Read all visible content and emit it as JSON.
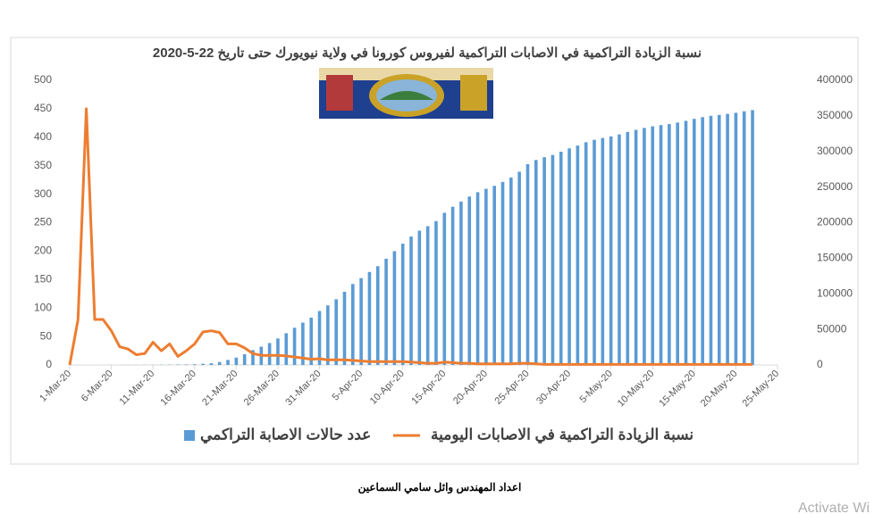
{
  "chart_data": {
    "type": "bar-line",
    "title": "نسبة  الزيادة  التراكمية في الاصابات التراكمية لفيروس كورونا  في ولاية نيويورك حتى تاريخ 22-5-2020",
    "x": [
      "2020-03-01",
      "2020-03-02",
      "2020-03-03",
      "2020-03-04",
      "2020-03-05",
      "2020-03-06",
      "2020-03-07",
      "2020-03-08",
      "2020-03-09",
      "2020-03-10",
      "2020-03-11",
      "2020-03-12",
      "2020-03-13",
      "2020-03-14",
      "2020-03-15",
      "2020-03-16",
      "2020-03-17",
      "2020-03-18",
      "2020-03-19",
      "2020-03-20",
      "2020-03-21",
      "2020-03-22",
      "2020-03-23",
      "2020-03-24",
      "2020-03-25",
      "2020-03-26",
      "2020-03-27",
      "2020-03-28",
      "2020-03-29",
      "2020-03-30",
      "2020-03-31",
      "2020-04-01",
      "2020-04-02",
      "2020-04-03",
      "2020-04-04",
      "2020-04-05",
      "2020-04-06",
      "2020-04-07",
      "2020-04-08",
      "2020-04-09",
      "2020-04-10",
      "2020-04-11",
      "2020-04-12",
      "2020-04-13",
      "2020-04-14",
      "2020-04-15",
      "2020-04-16",
      "2020-04-17",
      "2020-04-18",
      "2020-04-19",
      "2020-04-20",
      "2020-04-21",
      "2020-04-22",
      "2020-04-23",
      "2020-04-24",
      "2020-04-25",
      "2020-04-26",
      "2020-04-27",
      "2020-04-28",
      "2020-04-29",
      "2020-04-30",
      "2020-05-01",
      "2020-05-02",
      "2020-05-03",
      "2020-05-04",
      "2020-05-05",
      "2020-05-06",
      "2020-05-07",
      "2020-05-08",
      "2020-05-09",
      "2020-05-10",
      "2020-05-11",
      "2020-05-12",
      "2020-05-13",
      "2020-05-14",
      "2020-05-15",
      "2020-05-16",
      "2020-05-17",
      "2020-05-18",
      "2020-05-19",
      "2020-05-20",
      "2020-05-21",
      "2020-05-22"
    ],
    "series": [
      {
        "name": "عدد حالات الاصابة التراكمي",
        "color": "#5b9bd5",
        "axis": "y2",
        "kind": "bar",
        "values": [
          1,
          1,
          2,
          11,
          22,
          44,
          89,
          106,
          142,
          173,
          217,
          326,
          421,
          610,
          732,
          950,
          1700,
          2382,
          4152,
          7102,
          10356,
          15168,
          20875,
          25665,
          30811,
          37258,
          44635,
          52318,
          59513,
          66497,
          75795,
          83712,
          92381,
          102863,
          113704,
          122031,
          130689,
          138836,
          149316,
          159937,
          170512,
          180458,
          188694,
          195031,
          202208,
          213779,
          222284,
          229642,
          236732,
          242786,
          247512,
          251690,
          257216,
          263460,
          271590,
          282143,
          288045,
          291996,
          295106,
          299691,
          304372,
          308314,
          312977,
          316415,
          318953,
          321192,
          323978,
          327469,
          330407,
          333122,
          335395,
          337055,
          338485,
          340661,
          343051,
          345813,
          348232,
          350121,
          351371,
          352845,
          354370,
          356458,
          358154
        ]
      },
      {
        "name": "نسبة الزيادة  التراكمية في الاصابات اليومية",
        "color": "#ed7d31",
        "kind": "line",
        "values": [
          0,
          80,
          450,
          80,
          80,
          60,
          32,
          28,
          18,
          20,
          40,
          25,
          37,
          15,
          25,
          37,
          58,
          60,
          57,
          37,
          37,
          30,
          20,
          17,
          17,
          17,
          16,
          14,
          12,
          10,
          11,
          9,
          9,
          9,
          8,
          7,
          6,
          6,
          6,
          6,
          6,
          5,
          4,
          3,
          3,
          5,
          4,
          3,
          3,
          2,
          2,
          2,
          2,
          2,
          3,
          3,
          2,
          1,
          1,
          1,
          1,
          1,
          1,
          1,
          1,
          1,
          1,
          1,
          1,
          1,
          1,
          1,
          1,
          1,
          1,
          1,
          1,
          1,
          1,
          1,
          1,
          1,
          1
        ]
      }
    ],
    "xlim": [
      "2020-03-01",
      "2020-05-25"
    ],
    "xticks": [
      {
        "value": "2020-03-01",
        "label": "1-Mar-20"
      },
      {
        "value": "2020-03-06",
        "label": "6-Mar-20"
      },
      {
        "value": "2020-03-11",
        "label": "11-Mar-20"
      },
      {
        "value": "2020-03-16",
        "label": "16-Mar-20"
      },
      {
        "value": "2020-03-21",
        "label": "21-Mar-20"
      },
      {
        "value": "2020-03-26",
        "label": "26-Mar-20"
      },
      {
        "value": "2020-03-31",
        "label": "31-Mar-20"
      },
      {
        "value": "2020-04-05",
        "label": "5-Apr-20"
      },
      {
        "value": "2020-04-10",
        "label": "10-Apr-20"
      },
      {
        "value": "2020-04-15",
        "label": "15-Apr-20"
      },
      {
        "value": "2020-04-20",
        "label": "20-Apr-20"
      },
      {
        "value": "2020-04-25",
        "label": "25-Apr-20"
      },
      {
        "value": "2020-04-30",
        "label": "30-Apr-20"
      },
      {
        "value": "2020-05-05",
        "label": "5-May-20"
      },
      {
        "value": "2020-05-10",
        "label": "10-May-20"
      },
      {
        "value": "2020-05-15",
        "label": "15-May-20"
      },
      {
        "value": "2020-05-20",
        "label": "20-May-20"
      },
      {
        "value": "2020-05-25",
        "label": "25-May-20"
      }
    ],
    "ylim": [
      0,
      500
    ],
    "yticks": [
      0,
      50,
      100,
      150,
      200,
      250,
      300,
      350,
      400,
      450,
      500
    ],
    "y2lim": [
      0,
      400000
    ],
    "y2ticks": [
      0,
      50000,
      100000,
      150000,
      200000,
      250000,
      300000,
      350000,
      400000
    ],
    "legend": "bottom"
  },
  "footer": "اعداد المهندس وائل سامي السماعين",
  "watermark": "Activate Wi"
}
